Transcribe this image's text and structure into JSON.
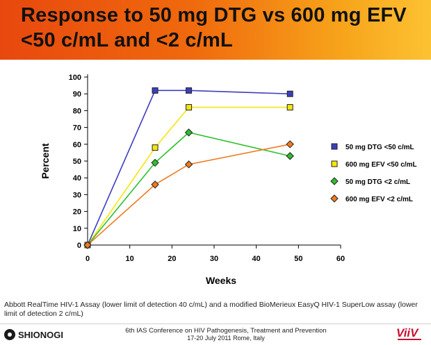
{
  "slide": {
    "title_line1": "Response to 50 mg DTG vs 600 mg EFV",
    "title_line2": "<50 c/mL and <2 c/mL",
    "footnote": "Abbott RealTime HIV-1 Assay (lower limit of detection 40 c/mL) and a modified BioMerieux EasyQ HIV-1 SuperLow assay (lower limit of detection 2 c/mL)",
    "conference_line1": "6th IAS Conference on HIV Pathogenesis, Treatment and Prevention",
    "conference_line2": "17-20 July 2011 Rome, Italy",
    "logo_left": "SHIONOGI",
    "logo_right": "ViiV"
  },
  "chart_data": {
    "type": "line",
    "title": "",
    "xlabel": "Weeks",
    "ylabel": "Percent",
    "xlim": [
      0,
      60
    ],
    "ylim": [
      0,
      100
    ],
    "xticks": [
      0,
      10,
      20,
      30,
      40,
      50,
      60
    ],
    "yticks": [
      0,
      10,
      20,
      30,
      40,
      50,
      60,
      70,
      80,
      90,
      100
    ],
    "grid": false,
    "legend_position": "right",
    "series": [
      {
        "name": "50 mg DTG <50 c/mL",
        "color": "#3d3dbf",
        "marker": "square",
        "x": [
          0,
          16,
          24,
          48
        ],
        "y": [
          0,
          92,
          92,
          90
        ]
      },
      {
        "name": "600 mg EFV <50 c/mL",
        "color": "#f5e60a",
        "marker": "square",
        "x": [
          0,
          16,
          24,
          48
        ],
        "y": [
          0,
          58,
          82,
          82
        ]
      },
      {
        "name": "50 mg DTG <2 c/mL",
        "color": "#2dbf2d",
        "marker": "diamond",
        "x": [
          0,
          16,
          24,
          48
        ],
        "y": [
          0,
          49,
          67,
          53
        ]
      },
      {
        "name": "600 mg EFV <2 c/mL",
        "color": "#f07a1e",
        "marker": "diamond",
        "x": [
          0,
          16,
          24,
          48
        ],
        "y": [
          0,
          36,
          48,
          60
        ]
      }
    ]
  }
}
